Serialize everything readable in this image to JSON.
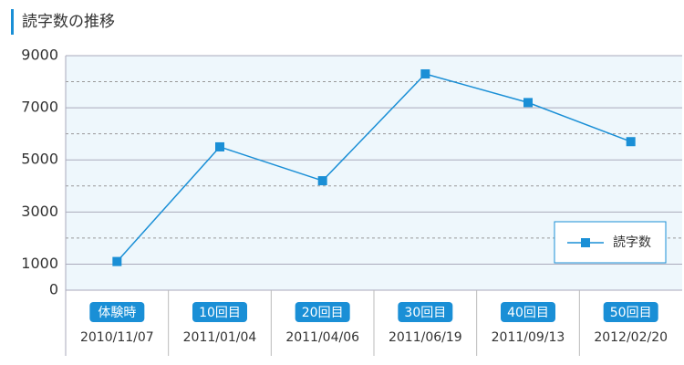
{
  "chart_data": {
    "type": "line",
    "title": "読字数の推移",
    "categories": [
      "体験時",
      "10回目",
      "20回目",
      "30回目",
      "40回目",
      "50回目"
    ],
    "category_dates": [
      "2010/11/07",
      "2011/01/04",
      "2011/04/06",
      "2011/06/19",
      "2011/09/13",
      "2012/02/20"
    ],
    "series": [
      {
        "name": "読字数",
        "color": "#1a8fd6",
        "values": [
          1100,
          5500,
          4200,
          8300,
          7200,
          5700
        ]
      }
    ],
    "ylim": [
      0,
      9000
    ],
    "yticks": [
      0,
      1000,
      3000,
      5000,
      7000,
      9000
    ],
    "minor_yticks": [
      2000,
      4000,
      6000,
      8000
    ],
    "grid": true,
    "legend": "lower right"
  }
}
